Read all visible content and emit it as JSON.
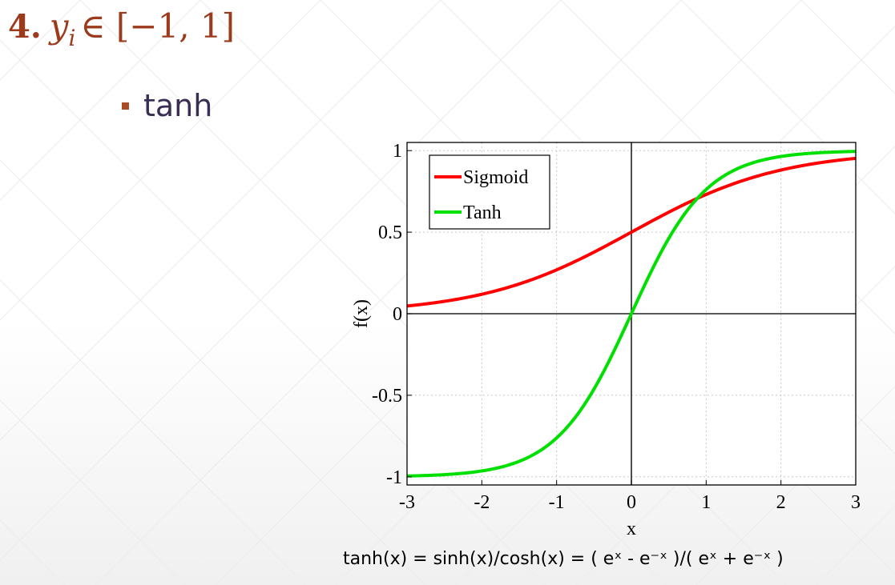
{
  "heading": {
    "number": "4.",
    "variable": "y",
    "subscript": "i",
    "set": "∈ [−1, 1]"
  },
  "bullet": {
    "label": "tanh",
    "bullet_color": "#a84b26"
  },
  "formula": "tanh(x) = sinh(x)/cosh(x) = ( eˣ - e⁻ˣ )/( eˣ + e⁻ˣ )",
  "chart_data": {
    "type": "line",
    "xlabel": "x",
    "ylabel": "f(x)",
    "xlim": [
      -3,
      3
    ],
    "ylim": [
      -1.05,
      1.05
    ],
    "xticks": [
      -3,
      -2,
      -1,
      0,
      1,
      2,
      3
    ],
    "yticks": [
      -1,
      -0.5,
      0,
      0.5,
      1
    ],
    "ytick_labels": [
      "-1",
      "-0.5",
      "0",
      "0.5",
      "1"
    ],
    "grid": true,
    "legend_position": "top-left",
    "x": [
      -3,
      -2.5,
      -2,
      -1.5,
      -1,
      -0.5,
      0,
      0.5,
      1,
      1.5,
      2,
      2.5,
      3
    ],
    "series": [
      {
        "name": "Sigmoid",
        "color": "#ff0000",
        "values": [
          0.047,
          0.076,
          0.119,
          0.182,
          0.269,
          0.378,
          0.5,
          0.622,
          0.731,
          0.818,
          0.881,
          0.924,
          0.953
        ]
      },
      {
        "name": "Tanh",
        "color": "#00e000",
        "values": [
          -0.995,
          -0.987,
          -0.964,
          -0.905,
          -0.762,
          -0.462,
          0,
          0.462,
          0.762,
          0.905,
          0.964,
          0.987,
          0.995
        ]
      }
    ]
  }
}
